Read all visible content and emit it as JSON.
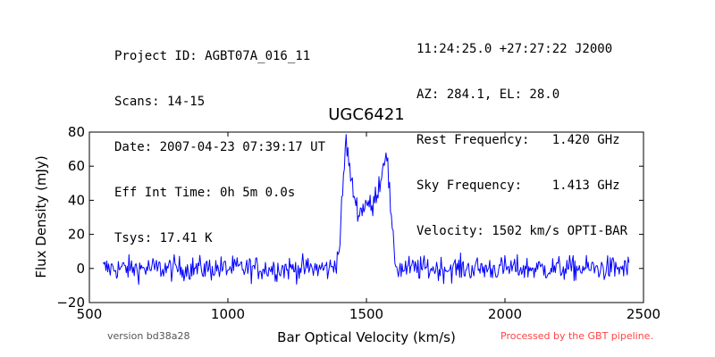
{
  "header": {
    "left": [
      "Project ID: AGBT07A_016_11",
      "Scans: 14-15",
      "Date: 2007-04-23 07:39:17 UT",
      "Eff Int Time: 0h 5m 0.0s",
      "Tsys: 17.41 K"
    ],
    "right": [
      "11:24:25.0 +27:27:22 J2000",
      "AZ: 284.1, EL: 28.0",
      "Rest Frequency:   1.420 GHz",
      "Sky Frequency:    1.413 GHz",
      "Velocity: 1502 km/s OPTI-BAR"
    ]
  },
  "footer": {
    "version": "version bd38a28",
    "processed": "Processed by the GBT pipeline."
  },
  "colors": {
    "series": "#0000ff",
    "processed_text": "#ff4444",
    "version_text": "#555555"
  },
  "chart_data": {
    "type": "line",
    "title": "UGC6421",
    "xlabel": "Bar Optical Velocity (km/s)",
    "ylabel": "Flux Density (mJy)",
    "xlim": [
      500,
      2500
    ],
    "ylim": [
      -20,
      80
    ],
    "xticks": [
      500,
      1000,
      1500,
      2000,
      2500
    ],
    "yticks": [
      -20,
      0,
      20,
      40,
      60,
      80
    ],
    "grid": false,
    "series": [
      {
        "x": [
          550,
          1375,
          1400,
          1415,
          1425,
          1435,
          1445,
          1455,
          1465,
          1480,
          1500,
          1520,
          1535,
          1550,
          1560,
          1570,
          1578,
          1585,
          1595,
          1610,
          2450
        ],
        "y": [
          0,
          0,
          8,
          45,
          76,
          65,
          50,
          44,
          36,
          33,
          40,
          34,
          44,
          52,
          60,
          72,
          58,
          40,
          15,
          0,
          0
        ]
      }
    ]
  }
}
